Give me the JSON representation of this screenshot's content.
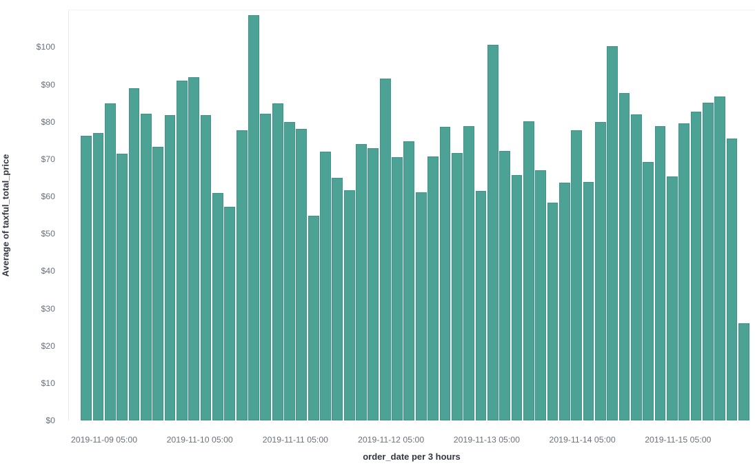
{
  "colors": {
    "bar_fill": "#4CA294",
    "bar_border": "#3E9488",
    "tick_label_text": "#69707D",
    "axis_title_text": "#343741",
    "background": "#FFFFFF"
  },
  "y_axis": {
    "title": "Average of taxful_total_price",
    "tick_labels": [
      "$0",
      "$10",
      "$20",
      "$30",
      "$40",
      "$50",
      "$60",
      "$70",
      "$80",
      "$90",
      "$100"
    ]
  },
  "x_axis": {
    "title": "order_date per 3 hours",
    "tick_labels": [
      "2019-11-09 05:00",
      "2019-11-10 05:00",
      "2019-11-11 05:00",
      "2019-11-12 05:00",
      "2019-11-13 05:00",
      "2019-11-14 05:00",
      "2019-11-15 05:00"
    ]
  },
  "chart_data": {
    "type": "bar",
    "title": "",
    "xlabel": "order_date per 3 hours",
    "ylabel": "Average of taxful_total_price",
    "ylim": [
      0,
      110
    ],
    "y_tick_step": 10,
    "y_tick_format": "$N",
    "grid": false,
    "legend": false,
    "bucket_interval": "3 hours",
    "x_tick_labels": [
      "2019-11-09 05:00",
      "2019-11-10 05:00",
      "2019-11-11 05:00",
      "2019-11-12 05:00",
      "2019-11-13 05:00",
      "2019-11-14 05:00",
      "2019-11-15 05:00"
    ],
    "x_tick_at_bar_index": [
      2,
      10,
      18,
      26,
      34,
      42,
      50
    ],
    "values": [
      76.2,
      76.9,
      85.0,
      71.4,
      89.0,
      82.1,
      73.3,
      81.8,
      91.1,
      91.9,
      81.7,
      61.0,
      57.3,
      77.8,
      108.6,
      82.1,
      84.9,
      80.0,
      78.1,
      54.9,
      72.0,
      64.9,
      61.7,
      74.1,
      72.9,
      91.5,
      70.5,
      74.8,
      61.2,
      70.8,
      78.6,
      71.7,
      78.9,
      61.5,
      100.7,
      72.1,
      65.7,
      80.2,
      67.1,
      58.3,
      63.7,
      77.8,
      63.9,
      80.0,
      100.3,
      87.7,
      82.0,
      69.2,
      78.9,
      65.3,
      79.5,
      82.8,
      85.1,
      86.8,
      75.5,
      26.0
    ]
  }
}
